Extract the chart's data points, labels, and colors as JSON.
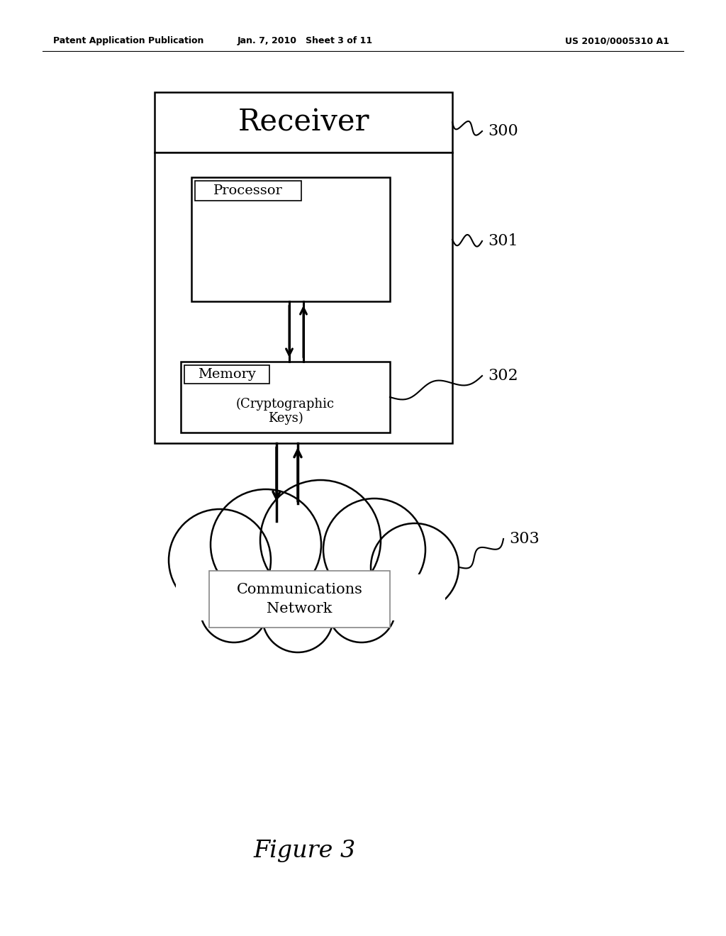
{
  "bg_color": "#ffffff",
  "header_left": "Patent Application Publication",
  "header_center": "Jan. 7, 2010   Sheet 3 of 11",
  "header_right": "US 2010/0005310 A1",
  "figure_caption": "Figure 3",
  "receiver_label": "Receiver",
  "processor_label": "Processor",
  "memory_line1": "Memory",
  "memory_line2": "(Cryptographic",
  "memory_line3": "Keys)",
  "network_label": "Communications\nNetwork",
  "label_300": "300",
  "label_301": "301",
  "label_302": "302",
  "label_303": "303"
}
